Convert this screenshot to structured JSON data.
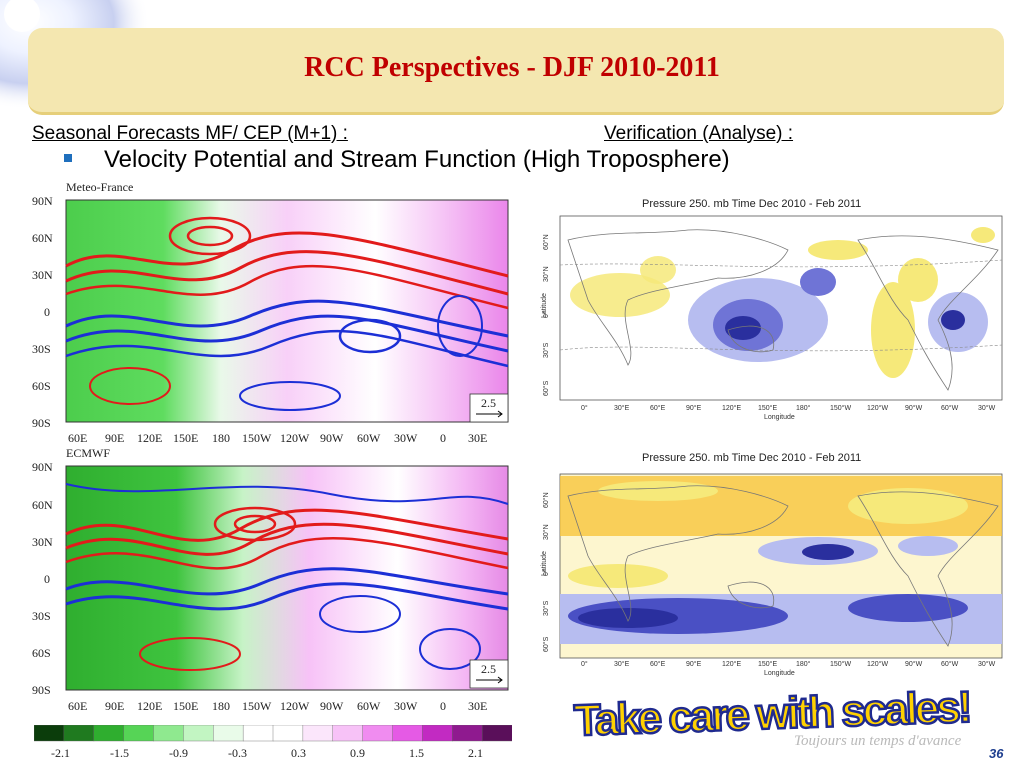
{
  "title": "RCC Perspectives - DJF 2010-2011",
  "subtitle_left": "Seasonal Forecasts MF/ CEP (M+1) :",
  "subtitle_right": "Verification  (Analyse) :",
  "bullet": "Velocity Potential and Stream Function (High Troposphere)",
  "forecast_maps": [
    {
      "model_label": "Meteo-France",
      "vector_scale": "2.5"
    },
    {
      "model_label": "ECMWF",
      "vector_scale": "2.5"
    }
  ],
  "forecast_lat_ticks": [
    "90N",
    "60N",
    "30N",
    "0",
    "30S",
    "60S",
    "90S"
  ],
  "forecast_lon_ticks": [
    "60E",
    "90E",
    "120E",
    "150E",
    "180",
    "150W",
    "120W",
    "90W",
    "60W",
    "30W",
    "0",
    "30E"
  ],
  "verification_maps": [
    {
      "title": "Pressure 250. mb Time Dec 2010 - Feb 2011"
    },
    {
      "title": "Pressure 250. mb Time Dec 2010 - Feb 2011"
    }
  ],
  "verification_lat_ticks": [
    "60°N",
    "30°N",
    "0°",
    "30°S",
    "60°S"
  ],
  "verification_lon_ticks": [
    "0°",
    "30°E",
    "60°E",
    "90°E",
    "120°E",
    "150°E",
    "180°",
    "150°W",
    "120°W",
    "90°W",
    "60°W",
    "30°W"
  ],
  "verification_xlabel": "Longitude",
  "verification_ylabel": "Latitude",
  "colorbar": {
    "labels": [
      "-2.1",
      "-1.5",
      "-0.9",
      "-0.3",
      "0.3",
      "0.9",
      "1.5",
      "2.1"
    ],
    "colors": [
      "#0b3d0b",
      "#1f7a1f",
      "#2fae2f",
      "#56d456",
      "#8fe98f",
      "#c2f5c2",
      "#e9fbe9",
      "#ffffff",
      "#ffffff",
      "#fbe6fb",
      "#f7c2f7",
      "#f08cf0",
      "#e55ae5",
      "#c22ac2",
      "#8f1a8f",
      "#5a0f5a"
    ]
  },
  "warning": "Take care with scales!",
  "footer_slogan": "Toujours un temps d'avance",
  "page_number": "36"
}
